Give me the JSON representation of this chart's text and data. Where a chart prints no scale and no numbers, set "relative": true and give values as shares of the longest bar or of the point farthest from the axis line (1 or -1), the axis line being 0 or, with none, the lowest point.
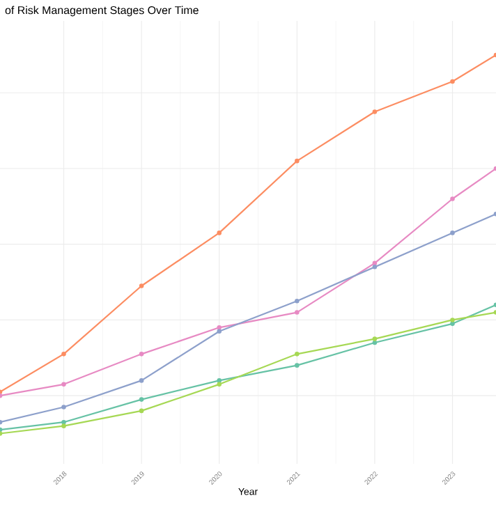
{
  "chart_data": {
    "type": "line",
    "title": "of Risk Management Stages Over Time",
    "xlabel": "Year",
    "relative": true,
    "grid": true,
    "marker": "circle",
    "line_style": "solid",
    "x": [
      2017.18,
      2018,
      2019,
      2020,
      2021,
      2022,
      2023,
      2023.56
    ],
    "xlim": [
      2017.18,
      2023.56
    ],
    "xticks": [
      2018,
      2019,
      2020,
      2021,
      2022,
      2023
    ],
    "series": [
      {
        "color": "#fc8d62",
        "values": [
          0.11,
          0.21,
          0.39,
          0.53,
          0.72,
          0.85,
          0.93,
          1
        ]
      },
      {
        "color": "#e78ac3",
        "values": [
          0.1,
          0.13,
          0.21,
          0.28,
          0.32,
          0.45,
          0.62,
          0.7
        ]
      },
      {
        "color": "#8da0cb",
        "values": [
          0.03,
          0.07,
          0.14,
          0.27,
          0.35,
          0.44,
          0.53,
          0.58
        ]
      },
      {
        "color": "#66c2a5",
        "values": [
          0.01,
          0.03,
          0.09,
          0.14,
          0.18,
          0.24,
          0.29,
          0.34
        ]
      },
      {
        "color": "#a6d854",
        "values": [
          0,
          0.02,
          0.06,
          0.13,
          0.21,
          0.25,
          0.3,
          0.32
        ]
      }
    ]
  }
}
